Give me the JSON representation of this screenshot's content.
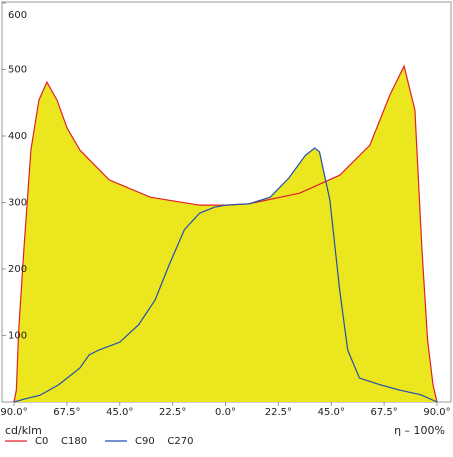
{
  "chart_data": {
    "type": "line",
    "y_unit_label": "cd/klm",
    "efficiency_label": "η – 100%",
    "xlim": [
      -90,
      90
    ],
    "ylim": [
      0,
      600
    ],
    "xticks": [
      {
        "value": -90,
        "label": "90.0°"
      },
      {
        "value": -67.5,
        "label": "67.5°"
      },
      {
        "value": -45,
        "label": "45.0°"
      },
      {
        "value": -22.5,
        "label": "22.5°"
      },
      {
        "value": 0,
        "label": "0.0°"
      },
      {
        "value": 22.5,
        "label": "22.5°"
      },
      {
        "value": 45,
        "label": "45.0°"
      },
      {
        "value": 67.5,
        "label": "67.5°"
      },
      {
        "value": 90,
        "label": "90.0°"
      }
    ],
    "yticks": [
      100,
      200,
      300,
      400,
      500,
      600
    ],
    "grid": false,
    "fill_color": "#ece61e",
    "series": [
      {
        "name": "C0    C180",
        "color": "#e0202a",
        "x": [
          -90,
          -89,
          -88,
          -85.8,
          -82.8,
          -79.4,
          -76,
          -71.7,
          -67.4,
          -62,
          -49.5,
          -32,
          -11,
          0,
          10,
          31.5,
          48.6,
          61.4,
          70,
          76,
          80.6,
          83.6,
          86,
          88.3,
          90
        ],
        "values": [
          0,
          18,
          108,
          229,
          379,
          454,
          481,
          454,
          412,
          379,
          334,
          308,
          296,
          296,
          298,
          314,
          341,
          386,
          462,
          505,
          439,
          229,
          93,
          26,
          0
        ]
      },
      {
        "name": "C90    C270",
        "color": "#2050b0",
        "x": [
          -90,
          -85,
          -79,
          -71,
          -62,
          -58,
          -54,
          -45,
          -37,
          -30,
          -24,
          -17.5,
          -11,
          -4.7,
          0,
          10,
          19,
          27,
          34,
          38,
          40,
          44.4,
          48.6,
          52,
          57,
          65.7,
          74,
          83,
          90
        ],
        "values": [
          0,
          5,
          10,
          26,
          51,
          71,
          78,
          90,
          116,
          153,
          206,
          259,
          284,
          293,
          296,
          298,
          308,
          337,
          371,
          382,
          376,
          304,
          168,
          78,
          36,
          26,
          18,
          11,
          0
        ]
      }
    ]
  }
}
